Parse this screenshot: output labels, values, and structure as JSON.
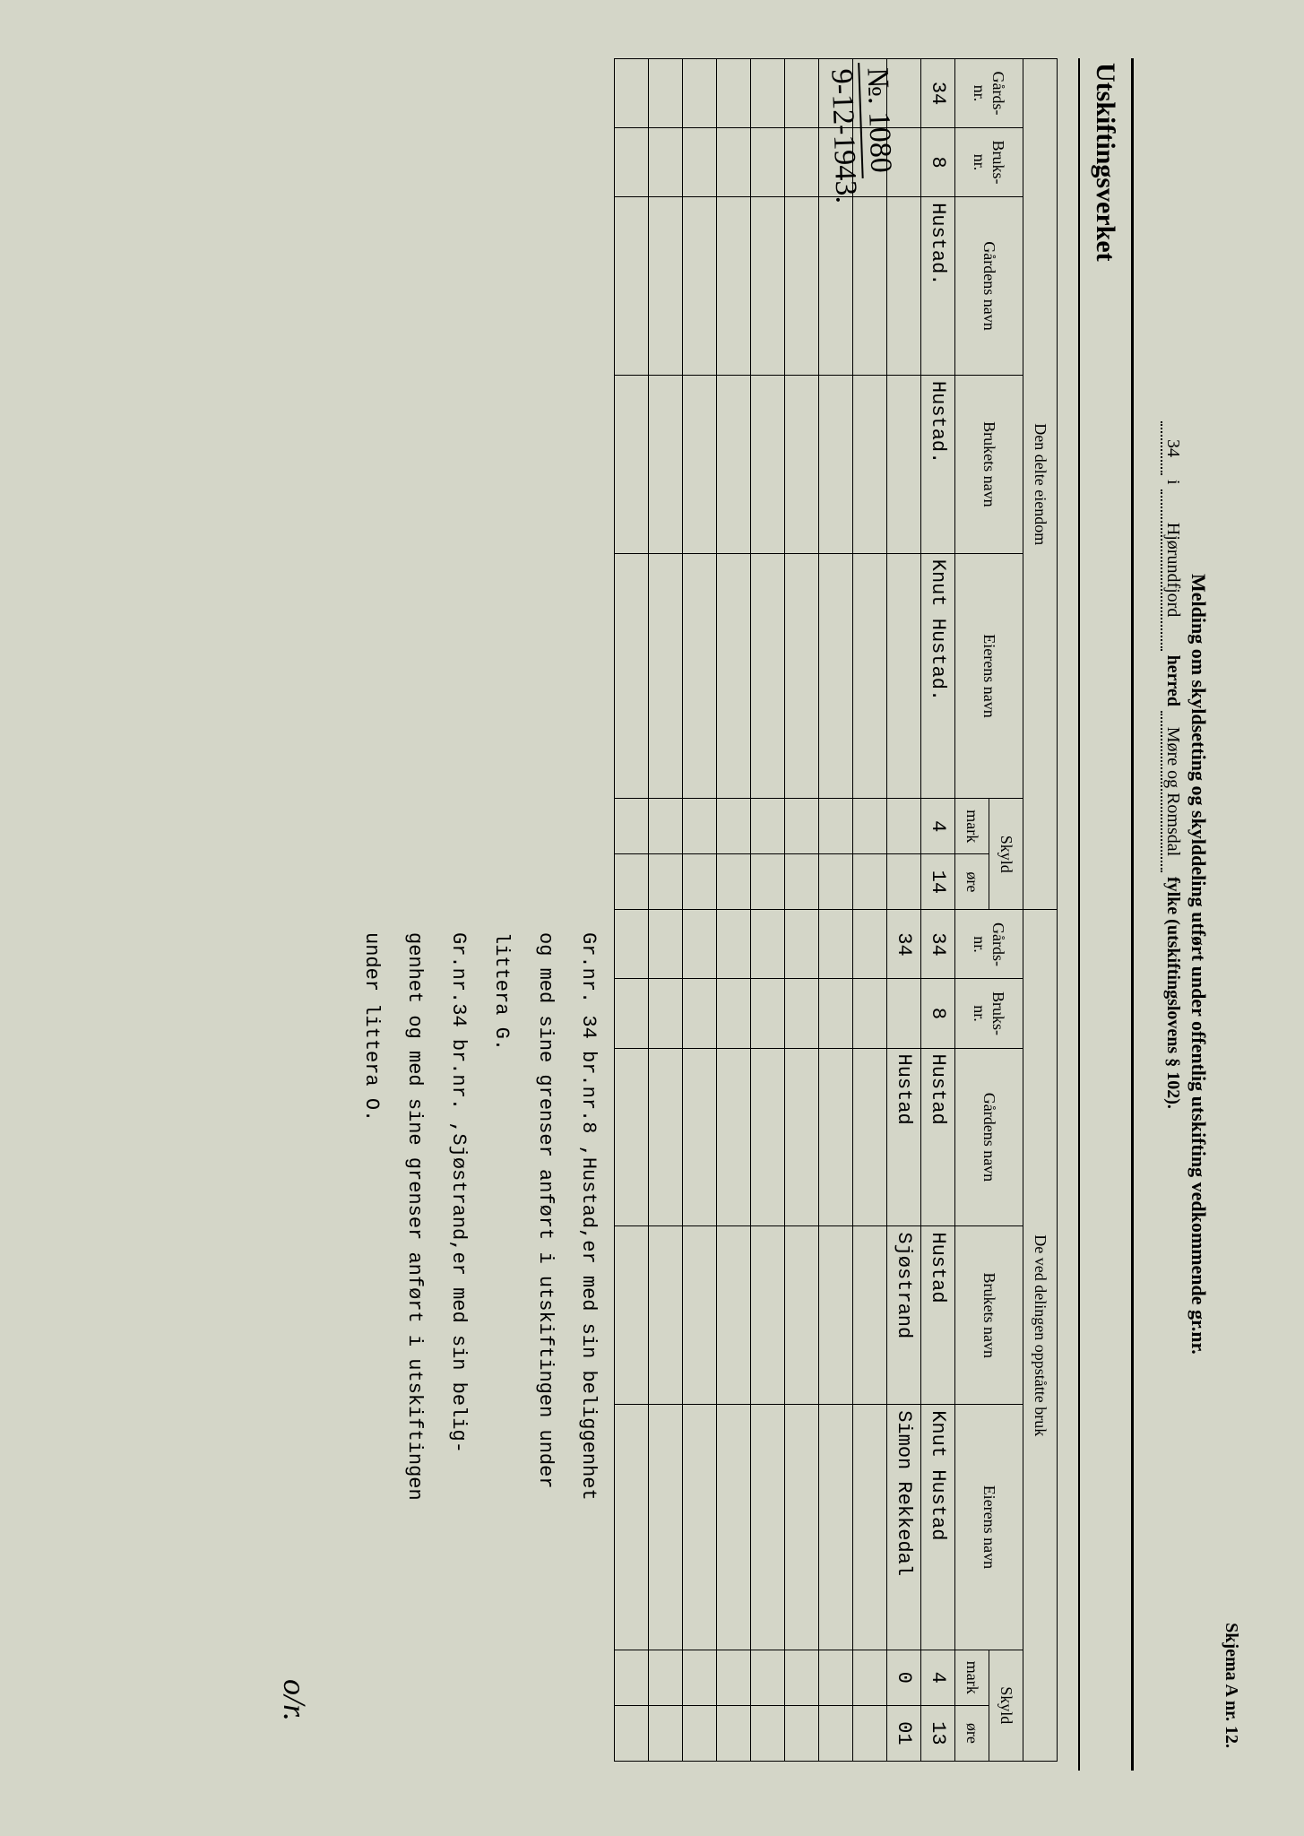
{
  "form_number": "Skjema A nr. 12.",
  "header": {
    "line1": "Melding om skyldsetting og skylddeling utført under offentlig utskifting vedkommende gr.nr.",
    "grnr": "34",
    "i": "i",
    "herred_name": "Hjørundfjord",
    "herred_label": "herred",
    "fylke_name": "Møre og Romsdal",
    "fylke_label": "fylke (utskiftingslovens § 102)."
  },
  "org_title": "Utskiftingsverket",
  "section_left": "Den delte eiendom",
  "section_right": "De ved delingen oppståtte bruk",
  "columns": {
    "gards_nr": "Gårds-\nnr.",
    "bruks_nr": "Bruks-\nnr.",
    "gardens_navn": "Gårdens navn",
    "brukets_navn": "Brukets navn",
    "eierens_navn": "Eierens navn",
    "skyld": "Skyld",
    "mark": "mark",
    "ore": "øre"
  },
  "left_rows": [
    {
      "gnr": "34",
      "bnr": "8",
      "gnavn": "Hustad.",
      "bnavn": "Hustad.",
      "eier": "Knut Hustad.",
      "mark": "4",
      "ore": "14"
    }
  ],
  "right_rows": [
    {
      "gnr": "34",
      "bnr": "8",
      "gnavn": "Hustad",
      "bnavn": "Hustad",
      "eier": "Knut Hustad",
      "mark": "4",
      "ore": "13"
    },
    {
      "gnr": "34",
      "bnr": "",
      "gnavn": "Hustad",
      "bnavn": "Sjøstrand",
      "eier": "Simon Rekkedal",
      "mark": "0",
      "ore": "01"
    }
  ],
  "notes": {
    "l1": "Gr.nr. 34 br.nr.8 ,Hustad,er med sin beliggenhet",
    "l2": "og med sine grenser anført i utskiftingen under",
    "l3": "littera G.",
    "l4": "Gr.nr.34 br.nr.   ,Sjøstrand,er med sin belig-",
    "l5": "genhet og med sine grenser anført i utskiftingen",
    "l6": "under littera O."
  },
  "handwriting": {
    "top": "№. 1080",
    "bot": "9-12-1943."
  },
  "signature": "o/r."
}
